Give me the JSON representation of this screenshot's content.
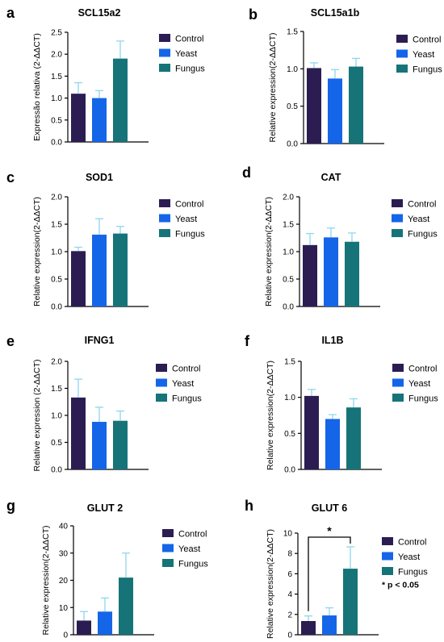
{
  "colors": {
    "control": "#2b1d52",
    "yeast": "#1565e8",
    "fungus": "#167478",
    "error_bar": "#8fd6ee",
    "axis": "#000000"
  },
  "legend": [
    "Control",
    "Yeast",
    "Fungus"
  ],
  "chart_data": [
    {
      "panel": "a",
      "type": "bar",
      "title": "SCL15a2",
      "ylabel": "Expressão relativa (2-ΔΔCT)",
      "categories": [
        "Control",
        "Yeast",
        "Fungus"
      ],
      "values": [
        1.1,
        1.0,
        1.9
      ],
      "errors": [
        0.25,
        0.17,
        0.4
      ],
      "ylim": [
        0,
        2.5
      ],
      "yticks": [
        "0.0",
        "0.5",
        "1.0",
        "1.5",
        "2.0",
        "2.5"
      ]
    },
    {
      "panel": "b",
      "type": "bar",
      "title": "SCL15a1b",
      "ylabel": "Relative expression(2-ΔΔCT)",
      "categories": [
        "Control",
        "Yeast",
        "Fungus"
      ],
      "values": [
        1.01,
        0.87,
        1.03
      ],
      "errors": [
        0.07,
        0.12,
        0.11
      ],
      "ylim": [
        0,
        1.5
      ],
      "yticks": [
        "0.0",
        "0.5",
        "1.0",
        "1.5"
      ]
    },
    {
      "panel": "c",
      "type": "bar",
      "title": "SOD1",
      "ylabel": "Relative expression(2-ΔΔCT)",
      "categories": [
        "Control",
        "Yeast",
        "Fungus"
      ],
      "values": [
        1.01,
        1.31,
        1.33
      ],
      "errors": [
        0.07,
        0.29,
        0.13
      ],
      "ylim": [
        0,
        2.0
      ],
      "yticks": [
        "0.0",
        "0.5",
        "1.0",
        "1.5",
        "2.0"
      ]
    },
    {
      "panel": "d",
      "type": "bar",
      "title": "CAT",
      "ylabel": "Relative expression(2-ΔΔCT)",
      "categories": [
        "Control",
        "Yeast",
        "Fungus"
      ],
      "values": [
        1.12,
        1.26,
        1.18
      ],
      "errors": [
        0.21,
        0.17,
        0.16
      ],
      "ylim": [
        0,
        2.0
      ],
      "yticks": [
        "0.0",
        "0.5",
        "1.0",
        "1.5",
        "2.0"
      ]
    },
    {
      "panel": "e",
      "type": "bar",
      "title": "IFNG1",
      "ylabel": "Relative expression (2-ΔΔCT)",
      "categories": [
        "Control",
        "Yeast",
        "Fungus"
      ],
      "values": [
        1.33,
        0.88,
        0.9
      ],
      "errors": [
        0.34,
        0.27,
        0.18
      ],
      "ylim": [
        0,
        2.0
      ],
      "yticks": [
        "0.0",
        "0.5",
        "1.0",
        "1.5",
        "2.0"
      ]
    },
    {
      "panel": "f",
      "type": "bar",
      "title": "IL1B",
      "ylabel": "Relative expression(2-ΔΔCT)",
      "categories": [
        "Control",
        "Yeast",
        "Fungus"
      ],
      "values": [
        1.02,
        0.7,
        0.86
      ],
      "errors": [
        0.09,
        0.06,
        0.12
      ],
      "ylim": [
        0,
        1.5
      ],
      "yticks": [
        "0.0",
        "0.5",
        "1.0",
        "1.5"
      ]
    },
    {
      "panel": "g",
      "type": "bar",
      "title": "GLUT 2",
      "ylabel": "Relative expression(2-ΔΔCT)",
      "categories": [
        "Control",
        "Yeast",
        "Fungus"
      ],
      "values": [
        5.2,
        8.5,
        21.0
      ],
      "errors": [
        3.3,
        5.0,
        9.0
      ],
      "ylim": [
        0,
        40
      ],
      "yticks": [
        "0",
        "10",
        "20",
        "30",
        "40"
      ]
    },
    {
      "panel": "h",
      "type": "bar",
      "title": "GLUT 6",
      "ylabel": "Relative expression(2-ΔΔCT)",
      "categories": [
        "Control",
        "Yeast",
        "Fungus"
      ],
      "values": [
        1.35,
        1.9,
        6.5
      ],
      "errors": [
        0.5,
        0.75,
        2.15
      ],
      "ylim": [
        0,
        10
      ],
      "yticks": [
        "0",
        "2",
        "4",
        "6",
        "8",
        "10"
      ],
      "significance": {
        "from": 0,
        "to": 2,
        "symbol": "*"
      },
      "annotation": "* p < 0.05"
    }
  ]
}
